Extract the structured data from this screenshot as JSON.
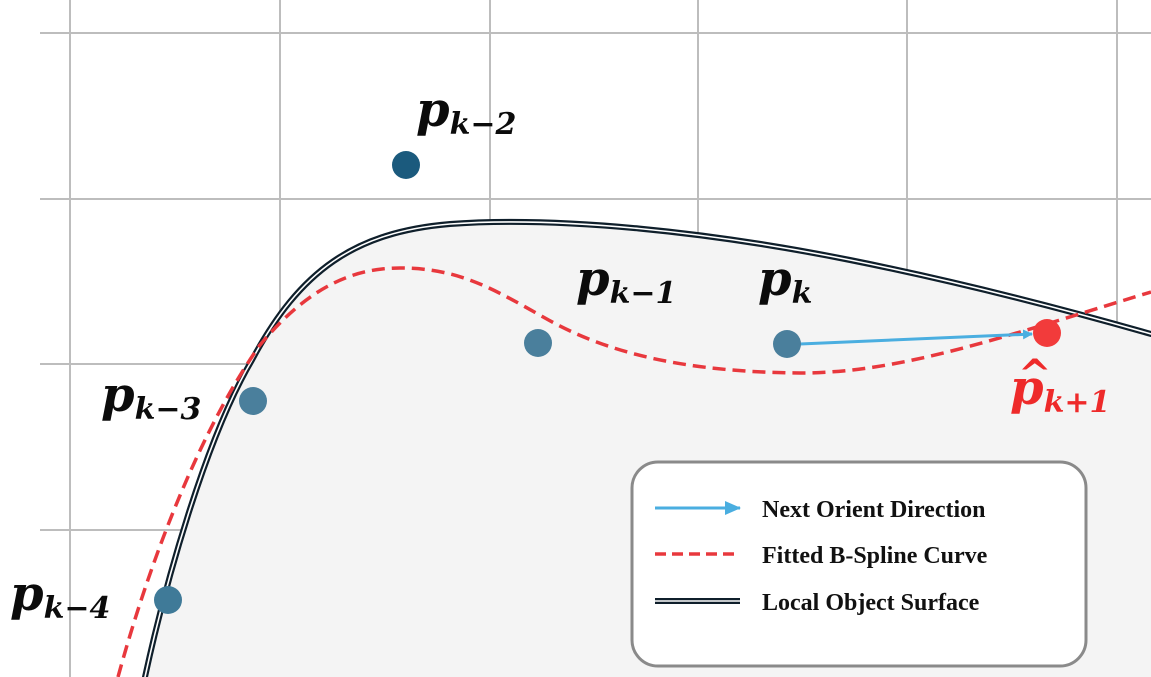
{
  "points": [
    {
      "id": "p_k-4",
      "base": "p",
      "subscript": "k−4",
      "color": "#3f7a98",
      "label_color": "#0b0b0b"
    },
    {
      "id": "p_k-3",
      "base": "p",
      "subscript": "k−3",
      "color": "#4a7f9c",
      "label_color": "#0b0b0b"
    },
    {
      "id": "p_k-2",
      "base": "p",
      "subscript": "k−2",
      "color": "#1b5a7d",
      "label_color": "#0b0b0b"
    },
    {
      "id": "p_k-1",
      "base": "p",
      "subscript": "k−1",
      "color": "#4a7f9c",
      "label_color": "#0b0b0b"
    },
    {
      "id": "p_k",
      "base": "p",
      "subscript": "k",
      "color": "#4a7f9c",
      "label_color": "#0b0b0b"
    },
    {
      "id": "p_hat_k+1",
      "base": "p",
      "hat": "^",
      "subscript": "k+1",
      "color": "#f23b3b",
      "label_color": "#ee2a2a"
    }
  ],
  "legend": {
    "items": [
      {
        "symbol": "arrow",
        "label": "Next Orient Direction",
        "color": "#4aaee0"
      },
      {
        "symbol": "dashed-line",
        "label": "Fitted B-Spline Curve",
        "color": "#e8383d"
      },
      {
        "symbol": "double-line",
        "label": "Local Object Surface",
        "color": "#0f1f2b"
      }
    ]
  },
  "colors": {
    "grid": "#bdbdbd",
    "surface_fill": "#f4f4f4",
    "surface_edge": "#0f1f2b",
    "bspline": "#e8383d",
    "direction_arrow": "#4aaee0",
    "legend_border": "#8a8a8a"
  }
}
